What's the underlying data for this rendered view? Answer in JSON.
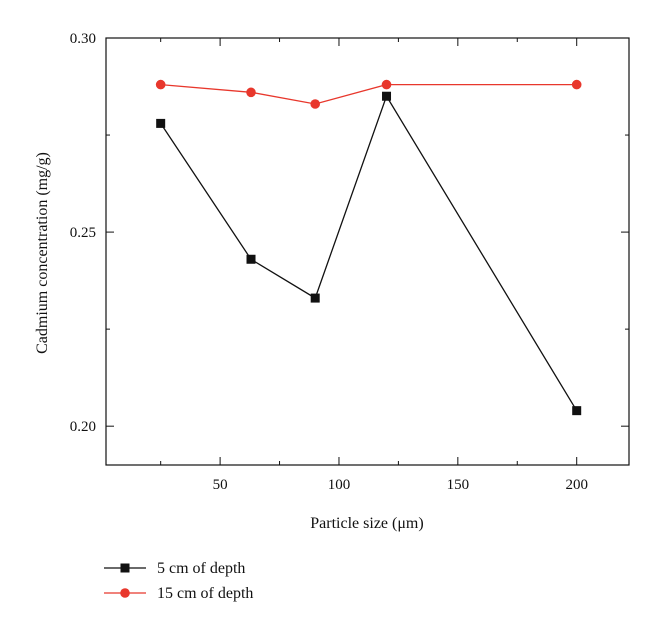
{
  "chart_data": {
    "type": "line",
    "xlabel": "Particle size (μm)",
    "ylabel": "Cadmium concentration (mg/g)",
    "xlim": [
      2,
      222
    ],
    "ylim": [
      0.19,
      0.3
    ],
    "x_ticks": [
      50,
      100,
      150,
      200
    ],
    "y_ticks": [
      0.2,
      0.25,
      0.3
    ],
    "x_tick_labels": [
      "50",
      "100",
      "150",
      "200"
    ],
    "y_tick_labels": [
      "0.20",
      "0.25",
      "0.30"
    ],
    "grid": false,
    "legend_position": "bottom-left, outside plot",
    "series": [
      {
        "name": "5 cm of depth",
        "color": "#111111",
        "marker": "square",
        "x": [
          25,
          63,
          90,
          120,
          200
        ],
        "values": [
          0.278,
          0.243,
          0.233,
          0.285,
          0.204
        ]
      },
      {
        "name": "15 cm of depth",
        "color": "#e8372c",
        "marker": "circle",
        "x": [
          25,
          63,
          90,
          120,
          200
        ],
        "values": [
          0.288,
          0.286,
          0.283,
          0.288,
          0.288
        ]
      }
    ]
  }
}
